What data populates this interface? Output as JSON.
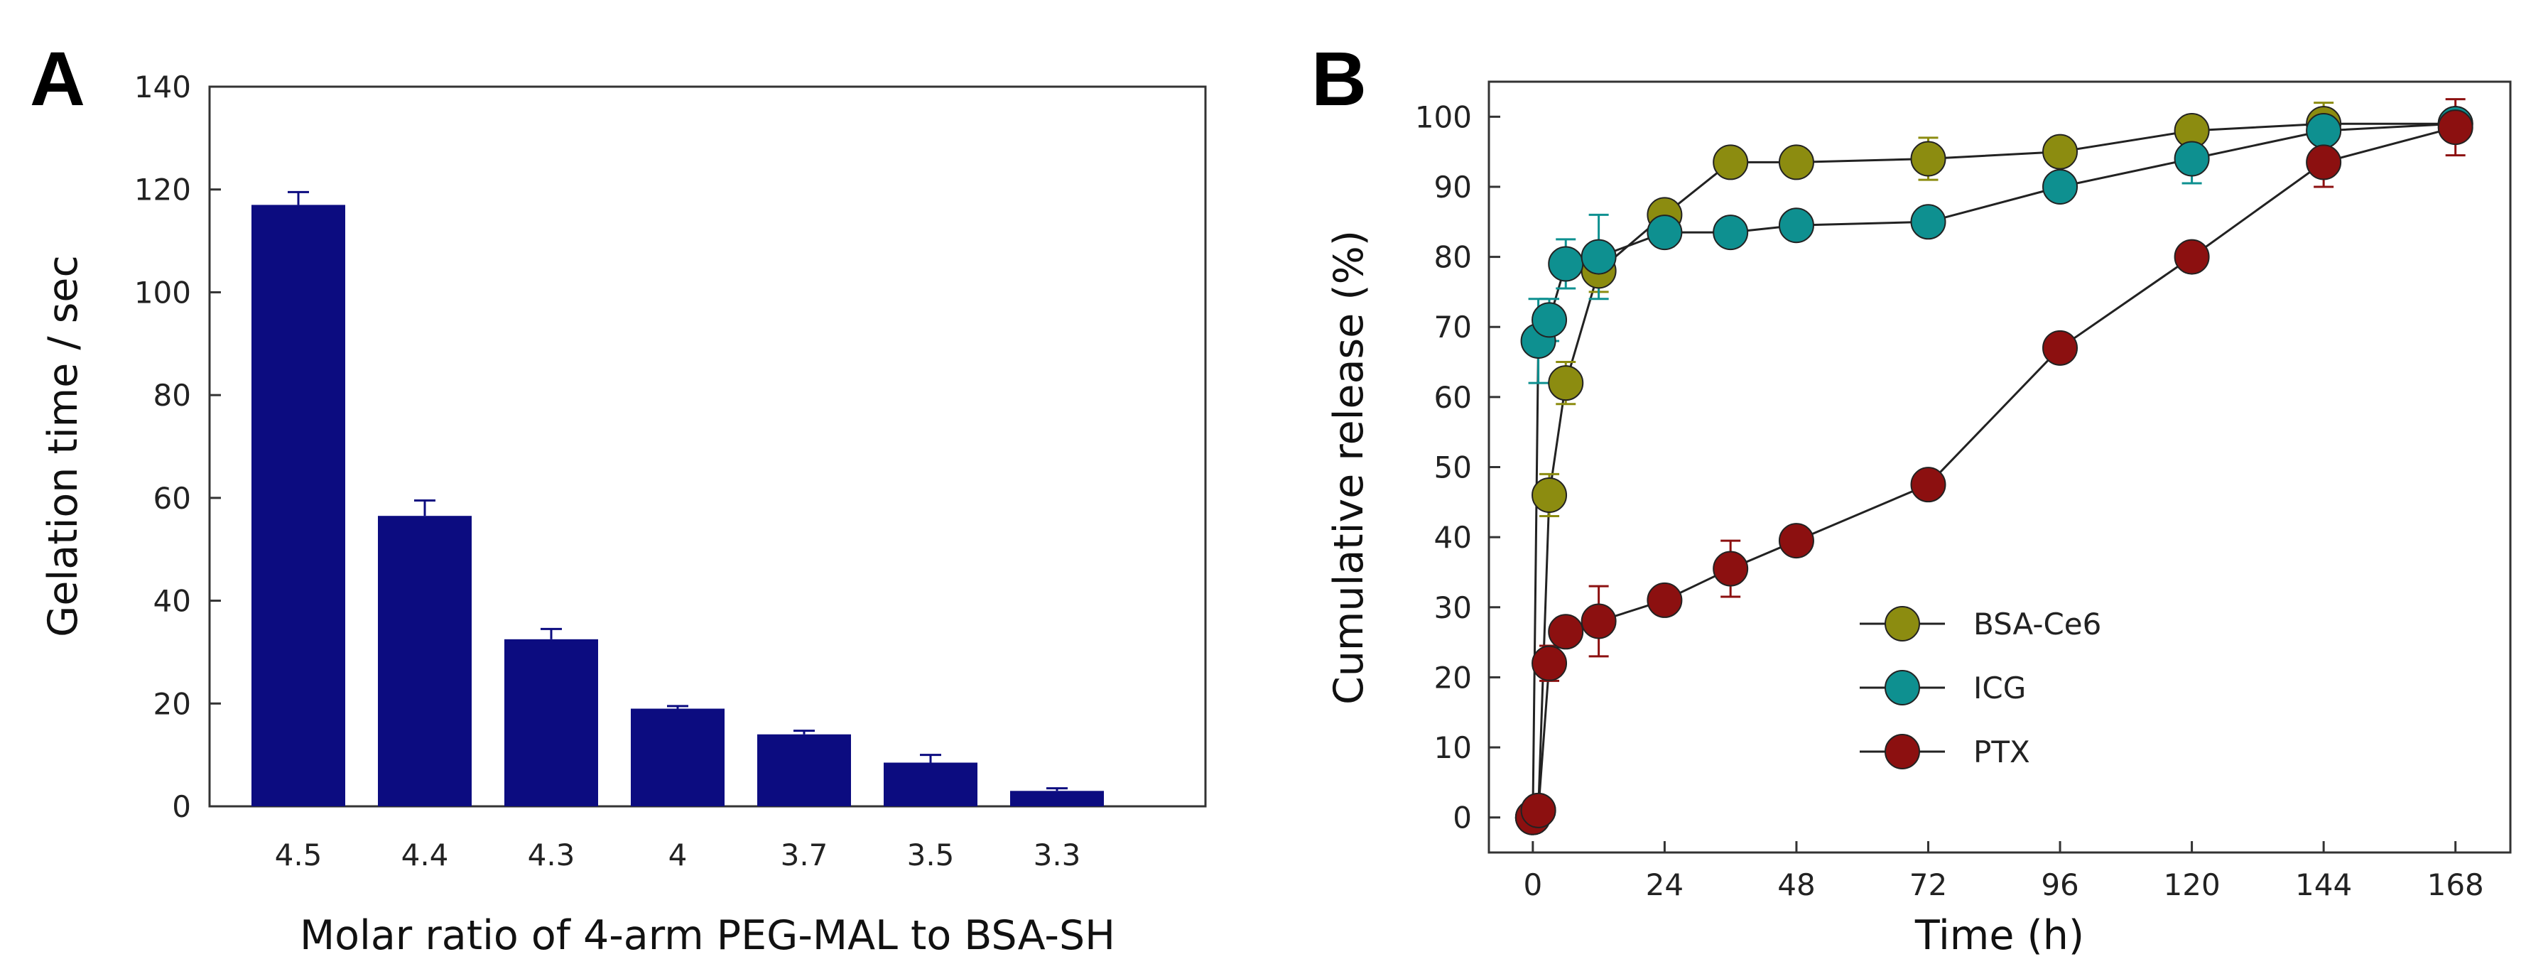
{
  "chart_data": [
    {
      "type": "bar",
      "panel_label": "A",
      "title": "",
      "xlabel": "Molar ratio of 4-arm PEG-MAL to BSA-SH",
      "ylabel": "Gelation time / sec",
      "categories": [
        "4.5",
        "4.4",
        "4.3",
        "4",
        "3.7",
        "3.5",
        "3.3"
      ],
      "values": [
        117,
        56.5,
        32.5,
        19,
        14,
        8.5,
        3
      ],
      "errors": [
        2.5,
        3,
        2,
        0.5,
        0.7,
        1.5,
        0.5
      ],
      "ylim": [
        0,
        140
      ],
      "yticks": [
        "0",
        "20",
        "40",
        "60",
        "80",
        "100",
        "120",
        "140"
      ],
      "bar_color": "#0c0c80",
      "grid": false
    },
    {
      "type": "line",
      "panel_label": "B",
      "title": "",
      "xlabel": "Time (h)",
      "ylabel": "Cumulative release (%)",
      "xlim": [
        -8,
        178
      ],
      "ylim": [
        -5,
        105
      ],
      "xticks": [
        "0",
        "24",
        "48",
        "72",
        "96",
        "120",
        "144",
        "168"
      ],
      "yticks": [
        "0",
        "10",
        "20",
        "30",
        "40",
        "50",
        "60",
        "70",
        "80",
        "90",
        "100"
      ],
      "legend_position": "bottom-center",
      "grid": false,
      "series": [
        {
          "name": "BSA-Ce6",
          "color": "#8c8c10",
          "x": [
            0,
            1,
            3,
            6,
            12,
            24,
            36,
            48,
            72,
            96,
            120,
            144,
            168
          ],
          "y": [
            0,
            1,
            46,
            62,
            78,
            86,
            93.5,
            93.5,
            94,
            95,
            98,
            99,
            99
          ],
          "err": [
            0,
            0,
            3,
            3,
            3,
            2,
            1,
            1,
            3,
            2,
            2,
            3,
            2
          ]
        },
        {
          "name": "ICG",
          "color": "#0e9090",
          "x": [
            0,
            1,
            3,
            6,
            12,
            24,
            36,
            48,
            72,
            96,
            120,
            144,
            168
          ],
          "y": [
            0,
            68,
            71,
            79,
            80,
            83.5,
            83.5,
            84.5,
            85,
            90,
            94,
            98,
            99
          ],
          "err": [
            0,
            6,
            3,
            3.5,
            6,
            2,
            1,
            1,
            1,
            1.5,
            3.5,
            2,
            2
          ]
        },
        {
          "name": "PTX",
          "color": "#8c1010",
          "x": [
            0,
            1,
            3,
            6,
            12,
            24,
            36,
            48,
            72,
            96,
            120,
            144,
            168
          ],
          "y": [
            0,
            1,
            22,
            26.5,
            28,
            31,
            35.5,
            39.5,
            47.5,
            67,
            80,
            93.5,
            98.5
          ],
          "err": [
            0,
            0,
            2.5,
            2,
            5,
            1,
            4,
            1,
            1,
            1,
            1,
            3.5,
            4
          ]
        }
      ]
    }
  ]
}
